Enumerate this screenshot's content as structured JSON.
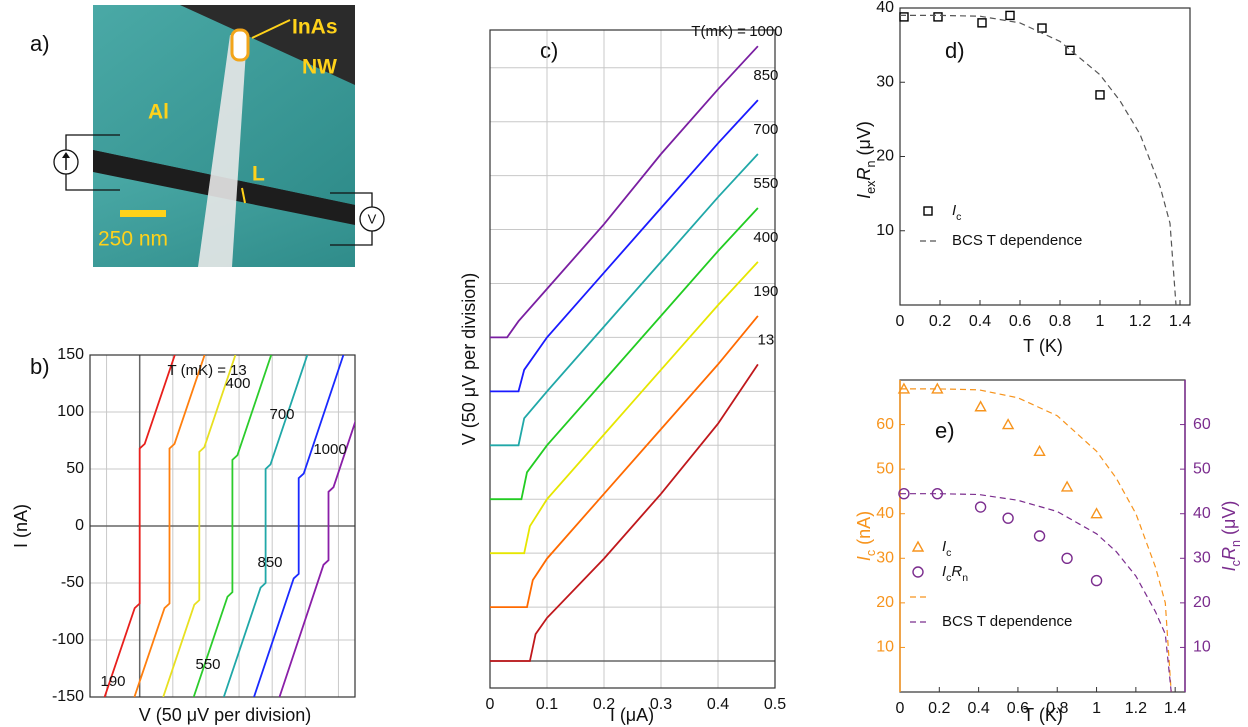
{
  "figure_panel": {
    "label": "a)",
    "texts": {
      "inas": "InAs",
      "nw": "NW",
      "al": "Al",
      "l": "L",
      "scale": "250 nm",
      "v": "V"
    }
  },
  "chart_data": [
    {
      "type": "line",
      "panel_label": "b)",
      "xlabel": "V (50 μV per division)",
      "ylabel": "I (nA)",
      "annotation": "T (mK) =",
      "xlim": [
        0,
        8
      ],
      "xgrid": [
        0.5,
        1.5,
        2.5,
        3.5,
        4.5,
        5.5,
        6.5,
        7.5
      ],
      "v_zero": 1.5,
      "ylim": [
        -150,
        150
      ],
      "yticks": [
        -150,
        -100,
        -50,
        0,
        50,
        100,
        150
      ],
      "grid": true,
      "series": [
        {
          "name": "13",
          "color": "#e8201c",
          "x": [
            0.44,
            1.35,
            1.5,
            1.5,
            1.65,
            2.56
          ],
          "values": [
            -150,
            -72,
            -68,
            68,
            72,
            150
          ]
        },
        {
          "name": "190",
          "color": "#ff7f0e",
          "x": [
            1.34,
            2.25,
            2.4,
            2.4,
            2.55,
            3.46
          ],
          "values": [
            -150,
            -72,
            -68,
            68,
            72,
            150
          ]
        },
        {
          "name": "400",
          "color": "#e8e020",
          "x": [
            2.21,
            3.15,
            3.3,
            3.3,
            3.45,
            4.39
          ],
          "values": [
            -150,
            -69,
            -65,
            65,
            69,
            150
          ]
        },
        {
          "name": "550",
          "color": "#2ccc2c",
          "x": [
            3.13,
            4.15,
            4.3,
            4.3,
            4.45,
            5.47
          ],
          "values": [
            -150,
            -62,
            -58,
            58,
            62,
            150
          ]
        },
        {
          "name": "700",
          "color": "#20a8a8",
          "x": [
            4.04,
            5.15,
            5.3,
            5.3,
            5.45,
            6.56
          ],
          "values": [
            -150,
            -54,
            -50,
            50,
            54,
            150
          ]
        },
        {
          "name": "850",
          "color": "#1a2aff",
          "x": [
            4.95,
            6.15,
            6.3,
            6.3,
            6.45,
            7.65
          ],
          "values": [
            -150,
            -46,
            -42,
            42,
            46,
            150
          ]
        },
        {
          "name": "1000",
          "color": "#8a1fa8",
          "x": [
            5.72,
            7.05,
            7.2,
            7.2,
            7.35,
            8.68
          ],
          "values": [
            -150,
            -34,
            -30,
            30,
            34,
            150
          ]
        }
      ]
    },
    {
      "type": "line",
      "panel_label": "c)",
      "xlabel": "I (μA)",
      "ylabel": "V (50 μV per division)",
      "annotation": "T(mK) =",
      "xlim": [
        0,
        0.5
      ],
      "xticks": [
        0,
        0.1,
        0.2,
        0.3,
        0.4,
        0.5
      ],
      "ylim": [
        -0.5,
        11.7
      ],
      "ygrid": [
        0,
        1,
        2,
        3,
        4,
        5,
        6,
        7,
        8,
        9,
        10,
        11
      ],
      "grid": true,
      "series": [
        {
          "name": "13",
          "color": "#c0181c",
          "x": [
            0,
            0.07,
            0.08,
            0.1,
            0.2,
            0.3,
            0.4,
            0.47
          ],
          "values": [
            0,
            0,
            0.5,
            0.8,
            1.9,
            3.1,
            4.4,
            5.5
          ]
        },
        {
          "name": "190",
          "color": "#ff6a00",
          "x": [
            0,
            0.065,
            0.075,
            0.1,
            0.2,
            0.3,
            0.4,
            0.47
          ],
          "values": [
            1,
            1,
            1.5,
            1.9,
            3.1,
            4.3,
            5.5,
            6.4
          ]
        },
        {
          "name": "400",
          "color": "#e6e600",
          "x": [
            0,
            0.06,
            0.07,
            0.1,
            0.2,
            0.3,
            0.4,
            0.47
          ],
          "values": [
            2,
            2,
            2.5,
            3.0,
            4.2,
            5.4,
            6.6,
            7.4
          ]
        },
        {
          "name": "550",
          "color": "#22cc22",
          "x": [
            0,
            0.055,
            0.065,
            0.1,
            0.2,
            0.3,
            0.4,
            0.47
          ],
          "values": [
            3,
            3,
            3.5,
            4.0,
            5.2,
            6.4,
            7.6,
            8.4
          ]
        },
        {
          "name": "700",
          "color": "#20a8a8",
          "x": [
            0,
            0.05,
            0.06,
            0.1,
            0.2,
            0.3,
            0.4,
            0.47
          ],
          "values": [
            4,
            4,
            4.5,
            5.0,
            6.2,
            7.4,
            8.6,
            9.4
          ]
        },
        {
          "name": "850",
          "color": "#1a1aff",
          "x": [
            0,
            0.05,
            0.06,
            0.1,
            0.2,
            0.3,
            0.4,
            0.47
          ],
          "values": [
            5,
            5,
            5.4,
            6.0,
            7.2,
            8.4,
            9.6,
            10.4
          ]
        },
        {
          "name": "1000",
          "color": "#7a1fa2",
          "x": [
            0,
            0.03,
            0.05,
            0.1,
            0.2,
            0.3,
            0.4,
            0.47
          ],
          "values": [
            6,
            6,
            6.3,
            6.9,
            8.1,
            9.4,
            10.6,
            11.4
          ]
        }
      ]
    },
    {
      "type": "scatter",
      "panel_label": "d)",
      "xlabel": "T (K)",
      "ylabel_parts": [
        "I",
        "ex",
        "R",
        "n",
        " (μV)"
      ],
      "xlim": [
        0,
        1.45
      ],
      "xticks": [
        0,
        0.2,
        0.4,
        0.6,
        0.8,
        1.0,
        1.2,
        1.4
      ],
      "ylim": [
        0,
        40
      ],
      "yticks": [
        10,
        20,
        30,
        40
      ],
      "series": [
        {
          "name_parts": [
            "I",
            "c"
          ],
          "kind": "points",
          "marker": "square",
          "color": "#000000",
          "x": [
            0.02,
            0.19,
            0.41,
            0.55,
            0.71,
            0.85,
            1.0
          ],
          "values": [
            38.8,
            38.8,
            38.0,
            39.0,
            37.3,
            34.3,
            28.3
          ]
        },
        {
          "name": "BCS T dependence",
          "kind": "dashed-line",
          "color": "#555555",
          "x": [
            0,
            0.2,
            0.4,
            0.6,
            0.8,
            1.0,
            1.1,
            1.2,
            1.3,
            1.35,
            1.38
          ],
          "values": [
            39,
            39,
            38.9,
            38,
            35.5,
            31,
            27.5,
            23,
            16,
            11,
            0
          ]
        }
      ]
    },
    {
      "type": "scatter",
      "panel_label": "e)",
      "xlabel": "T (K)",
      "ylabel_parts": [
        "I",
        "c",
        " (nA)"
      ],
      "y2label_parts": [
        "I",
        "c",
        "R",
        "n",
        " (μV)"
      ],
      "xlim": [
        0,
        1.45
      ],
      "xticks": [
        0,
        0.2,
        0.4,
        0.6,
        0.8,
        1.0,
        1.2,
        1.4
      ],
      "ylim": [
        0,
        70
      ],
      "yticks": [
        10,
        20,
        30,
        40,
        50,
        60
      ],
      "y_color": "#f7941d",
      "y2lim": [
        0,
        70
      ],
      "y2ticks": [
        10,
        20,
        30,
        40,
        50,
        60
      ],
      "y2_color": "#7b2d8e",
      "series": [
        {
          "name_parts": [
            "I",
            "c"
          ],
          "kind": "points",
          "marker": "triangle",
          "color": "#f7941d",
          "x": [
            0.02,
            0.19,
            0.41,
            0.55,
            0.71,
            0.85,
            1.0
          ],
          "values": [
            68,
            68,
            64,
            60,
            54,
            46,
            40
          ]
        },
        {
          "name_parts": [
            "I",
            "c",
            "R",
            "n"
          ],
          "kind": "points",
          "marker": "circle",
          "axis": "y2",
          "color": "#7b2d8e",
          "x": [
            0.02,
            0.19,
            0.41,
            0.55,
            0.71,
            0.85,
            1.0
          ],
          "values": [
            44.5,
            44.5,
            41.5,
            39,
            35,
            30,
            25
          ]
        },
        {
          "kind": "dashed-line",
          "color": "#f7941d",
          "x": [
            0,
            0.2,
            0.4,
            0.6,
            0.8,
            1.0,
            1.1,
            1.2,
            1.3,
            1.35,
            1.38
          ],
          "values": [
            68,
            68,
            67.8,
            66,
            62,
            54,
            48,
            40,
            28,
            20,
            0
          ]
        },
        {
          "name": "BCS T dependence",
          "kind": "dashed-line",
          "axis": "y2",
          "color": "#7b2d8e",
          "x": [
            0,
            0.2,
            0.4,
            0.6,
            0.8,
            1.0,
            1.1,
            1.2,
            1.3,
            1.35,
            1.38
          ],
          "values": [
            44.5,
            44.5,
            44.3,
            43,
            40.5,
            35.5,
            31.5,
            26,
            18,
            13,
            0
          ]
        }
      ]
    }
  ]
}
